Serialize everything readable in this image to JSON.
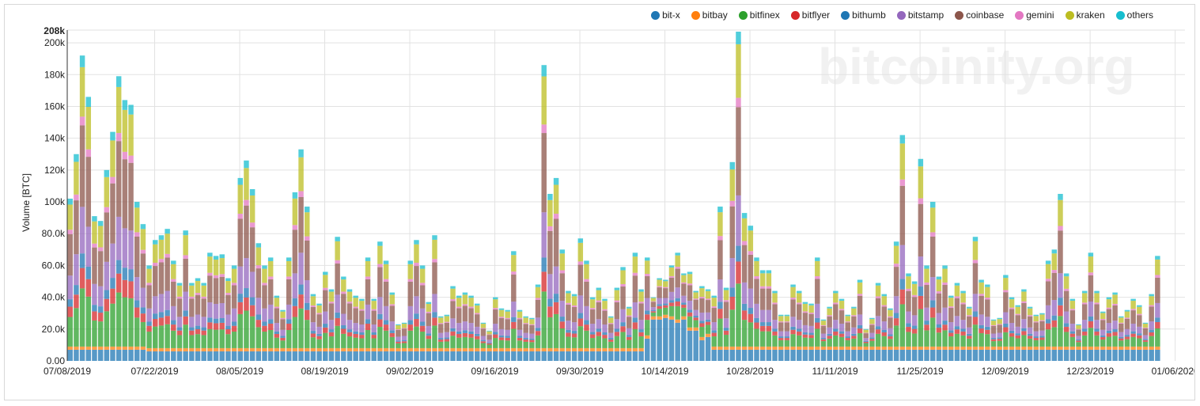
{
  "legend": [
    {
      "label": "bit-x",
      "color": "#1f77b4"
    },
    {
      "label": "bitbay",
      "color": "#ff7f0e"
    },
    {
      "label": "bitfinex",
      "color": "#2ca02c"
    },
    {
      "label": "bitflyer",
      "color": "#d62728"
    },
    {
      "label": "bithumb",
      "color": "#1f77b4"
    },
    {
      "label": "bitstamp",
      "color": "#9467bd"
    },
    {
      "label": "coinbase",
      "color": "#8c564b"
    },
    {
      "label": "gemini",
      "color": "#e377c2"
    },
    {
      "label": "kraken",
      "color": "#bcbd22"
    },
    {
      "label": "others",
      "color": "#17becf"
    }
  ],
  "watermark": "bitcoinity.org",
  "chart_data": {
    "type": "bar",
    "stacked": true,
    "title": "",
    "xlabel": "",
    "ylabel": "Volume [BTC]",
    "ylim": [
      0,
      208000
    ],
    "y_max_label": "208k",
    "y_ticks": [
      {
        "value": 0,
        "label": "0.00"
      },
      {
        "value": 20000,
        "label": "20.0k"
      },
      {
        "value": 40000,
        "label": "40.0k"
      },
      {
        "value": 60000,
        "label": "60.0k"
      },
      {
        "value": 80000,
        "label": "80.0k"
      },
      {
        "value": 100000,
        "label": "100k"
      },
      {
        "value": 120000,
        "label": "120k"
      },
      {
        "value": 140000,
        "label": "140k"
      },
      {
        "value": 160000,
        "label": "160k"
      },
      {
        "value": 180000,
        "label": "180k"
      },
      {
        "value": 200000,
        "label": "200k"
      }
    ],
    "start_date": "07/08/2019",
    "x_ticks": [
      {
        "day": 0,
        "label": "07/08/2019"
      },
      {
        "day": 14,
        "label": "07/22/2019"
      },
      {
        "day": 28,
        "label": "08/05/2019"
      },
      {
        "day": 42,
        "label": "08/19/2019"
      },
      {
        "day": 56,
        "label": "09/02/2019"
      },
      {
        "day": 70,
        "label": "09/16/2019"
      },
      {
        "day": 84,
        "label": "09/30/2019"
      },
      {
        "day": 98,
        "label": "10/14/2019"
      },
      {
        "day": 112,
        "label": "10/28/2019"
      },
      {
        "day": 126,
        "label": "11/11/2019"
      },
      {
        "day": 140,
        "label": "11/25/2019"
      },
      {
        "day": 154,
        "label": "12/09/2019"
      },
      {
        "day": 168,
        "label": "12/23/2019"
      },
      {
        "day": 182,
        "label": "01/06/2020"
      }
    ],
    "unit": "thousand BTC",
    "totals": [
      102,
      130,
      192,
      166,
      91,
      88,
      120,
      144,
      179,
      164,
      161,
      100,
      86,
      60,
      76,
      79,
      83,
      63,
      49,
      82,
      49,
      52,
      49,
      68,
      66,
      67,
      52,
      60,
      115,
      126,
      108,
      74,
      60,
      65,
      41,
      32,
      65,
      106,
      133,
      97,
      42,
      36,
      56,
      45,
      78,
      53,
      45,
      41,
      39,
      65,
      39,
      75,
      63,
      43,
      23,
      24,
      63,
      76,
      60,
      37,
      79,
      28,
      29,
      47,
      41,
      43,
      41,
      36,
      24,
      19,
      40,
      33,
      32,
      69,
      32,
      28,
      27,
      48,
      186,
      105,
      115,
      70,
      44,
      42,
      77,
      63,
      40,
      46,
      39,
      28,
      46,
      59,
      34,
      68,
      45,
      65,
      40,
      52,
      51,
      60,
      68,
      55,
      56,
      44,
      47,
      45,
      41,
      97,
      46,
      125,
      207,
      93,
      85,
      65,
      57,
      57,
      44,
      29,
      29,
      48,
      44,
      37,
      36,
      65,
      26,
      34,
      44,
      39,
      29,
      34,
      51,
      20,
      27,
      49,
      42,
      33,
      75,
      142,
      55,
      50,
      127,
      60,
      100,
      53,
      60,
      41,
      49,
      44,
      34,
      78,
      51,
      48,
      26,
      27,
      54,
      40,
      35,
      45,
      34,
      29,
      30,
      63,
      70,
      105,
      55,
      39,
      23,
      44,
      68,
      44,
      31,
      40,
      43,
      28,
      32,
      39,
      35,
      24,
      42,
      66,
      31,
      34,
      60,
      93
    ],
    "series": [
      {
        "name": "bit-x",
        "values": [
          7,
          7,
          7,
          7,
          7,
          7,
          7,
          7,
          7,
          7,
          7,
          7,
          7,
          6,
          6,
          6,
          6,
          6,
          6,
          6,
          6,
          6,
          6,
          6,
          6,
          6,
          6,
          6,
          6,
          6,
          6,
          6,
          6,
          6,
          6,
          6,
          6,
          6,
          6,
          6,
          6,
          6,
          6,
          6,
          6,
          6,
          6,
          6,
          6,
          6,
          6,
          6,
          6,
          6,
          6,
          6,
          6,
          6,
          6,
          6,
          6,
          6,
          6,
          6,
          6,
          6,
          6,
          6,
          6,
          6,
          6,
          6,
          6,
          6,
          6,
          6,
          6,
          6,
          6,
          6,
          6,
          6,
          6,
          6,
          6,
          6,
          6,
          6,
          6,
          6,
          6,
          6,
          6,
          6,
          6,
          14,
          26,
          26,
          27,
          26,
          24,
          26,
          19,
          19,
          13,
          15,
          7,
          7,
          7,
          7,
          7,
          7,
          7,
          7,
          7,
          7,
          7,
          7,
          7,
          7,
          7,
          7,
          7,
          7,
          7,
          7,
          7,
          7,
          7,
          7,
          7,
          7,
          7,
          7,
          7,
          7,
          7,
          7,
          7,
          7,
          7,
          7,
          7,
          7,
          7,
          7,
          7,
          7,
          7,
          7,
          7,
          7,
          7,
          7,
          7,
          7,
          7,
          7,
          7,
          7,
          7,
          7,
          7,
          7,
          7,
          7,
          7,
          7,
          7,
          7,
          7,
          7,
          7,
          7,
          7,
          7,
          7,
          7,
          7,
          7
        ]
      },
      {
        "name": "bitbay",
        "constant": 2
      },
      {
        "name": "bitfinex",
        "share_of_rest": 0.2
      },
      {
        "name": "bitflyer",
        "share_of_rest": 0.07
      },
      {
        "name": "bithumb",
        "share_of_rest": 0.05
      },
      {
        "name": "bitstamp",
        "share_of_rest": 0.16
      },
      {
        "name": "coinbase",
        "share_of_rest": 0.28
      },
      {
        "name": "gemini",
        "share_of_rest": 0.03
      },
      {
        "name": "kraken",
        "share_of_rest": 0.17
      },
      {
        "name": "others",
        "share_of_rest": 0.04
      }
    ],
    "grid": true,
    "legend_position": "top-right"
  }
}
